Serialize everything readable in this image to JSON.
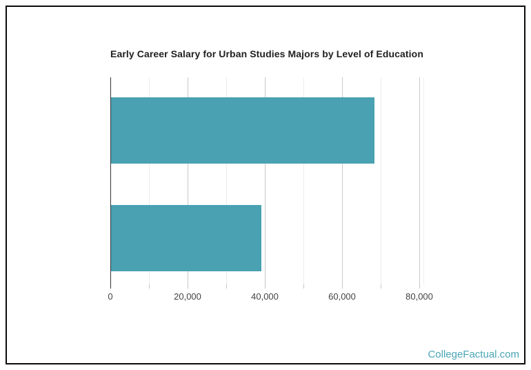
{
  "chart_data": {
    "type": "bar",
    "orientation": "horizontal",
    "title": "Early Career Salary for Urban Studies Majors by Level of Education",
    "categories": [
      "",
      ""
    ],
    "values": [
      68300,
      39000
    ],
    "xlabel": "",
    "ylabel": "",
    "xlim": [
      0,
      81000
    ],
    "x_ticks": [
      0,
      20000,
      40000,
      60000,
      80000
    ],
    "x_tick_labels": [
      "0",
      "20,000",
      "40,000",
      "60,000",
      "80,000"
    ],
    "minor_grid_step": 10000,
    "grid": true,
    "legend": "none",
    "bar_color": "#49a1b1"
  },
  "watermark": {
    "text": "CollegeFactual.com",
    "color": "#4aa6b6"
  }
}
